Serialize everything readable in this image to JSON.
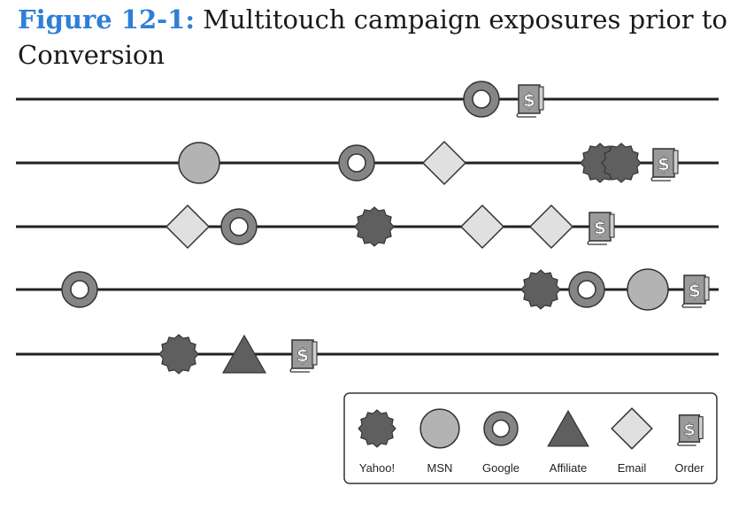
{
  "caption": {
    "figure_label": "Figure 12-1:",
    "text": "Multitouch campaign exposures prior to Conversion"
  },
  "legend": {
    "items": [
      {
        "key": "yahoo",
        "label": "Yahoo!"
      },
      {
        "key": "msn",
        "label": "MSN"
      },
      {
        "key": "google",
        "label": "Google"
      },
      {
        "key": "affiliate",
        "label": "Affiliate"
      },
      {
        "key": "email",
        "label": "Email"
      },
      {
        "key": "order",
        "label": "Order"
      }
    ]
  },
  "timelines": [
    {
      "touchpoints": [
        "google",
        "order"
      ]
    },
    {
      "touchpoints": [
        "msn",
        "google",
        "email",
        "yahoo",
        "yahoo",
        "order"
      ]
    },
    {
      "touchpoints": [
        "email",
        "google",
        "yahoo",
        "email",
        "email",
        "order"
      ]
    },
    {
      "touchpoints": [
        "google",
        "yahoo",
        "google",
        "msn",
        "order"
      ]
    },
    {
      "touchpoints": [
        "yahoo",
        "affiliate",
        "order"
      ]
    }
  ],
  "colors": {
    "yahoo": "#5f5f5f",
    "msn": "#b3b3b3",
    "google_ring": "#858585",
    "affiliate": "#5f5f5f",
    "email": "#e0e0e0",
    "order": "#9a9a9a",
    "stroke": "#333333",
    "line": "#222222"
  }
}
